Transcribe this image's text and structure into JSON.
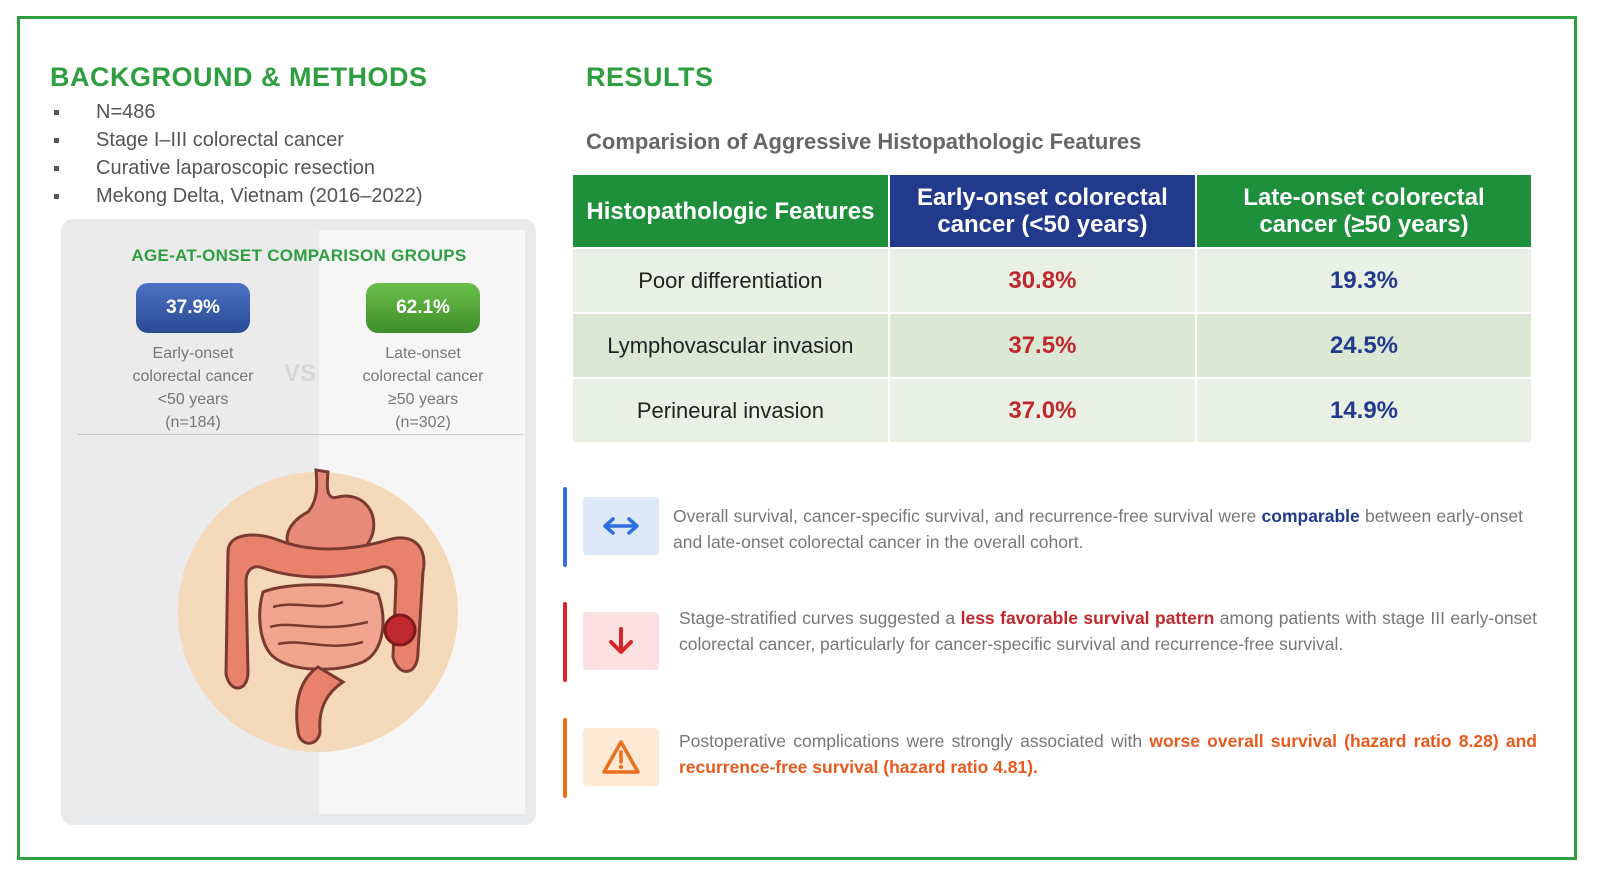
{
  "left": {
    "heading": "BACKGROUND & METHODS",
    "bullets": [
      "N=486",
      "Stage I–III colorectal cancer",
      "Curative laparoscopic resection",
      "Mekong Delta, Vietnam (2016–2022)"
    ],
    "groups_title": "AGE-AT-ONSET COMPARISON GROUPS",
    "vs": "VS",
    "early": {
      "pct": "37.9%",
      "line1": "Early-onset",
      "line2": "colorectal cancer",
      "line3": "<50 years",
      "line4": "(n=184)"
    },
    "late": {
      "pct": "62.1%",
      "line1": "Late-onset",
      "line2": "colorectal cancer",
      "line3": "≥50 years",
      "line4": "(n=302)"
    },
    "illustration": "digestive-tract-icon"
  },
  "right": {
    "heading": "RESULTS",
    "table_title": "Comparision of Aggressive Histopathologic Features",
    "columns": [
      "Histopathologic Features",
      "Early-onset colorectal cancer (<50 years)",
      "Late-onset colorectal cancer (≥50 years)"
    ],
    "rows": [
      {
        "feature": "Poor differentiation",
        "early": "30.8%",
        "late": "19.3%"
      },
      {
        "feature": "Lymphovascular invasion",
        "early": "37.5%",
        "late": "24.5%"
      },
      {
        "feature": "Perineural invasion",
        "early": "37.0%",
        "late": "14.9%"
      }
    ],
    "notes": [
      {
        "icon": "double-arrow-icon",
        "color": "#2f6fe0",
        "pre": "Overall survival, cancer-specific survival, and recurrence-free survival were ",
        "highlight": "comparable",
        "post": " between early-onset and late-onset colorectal cancer in the overall cohort."
      },
      {
        "icon": "down-arrow-icon",
        "color": "#d9252a",
        "pre": "Stage-stratified curves suggested a ",
        "highlight": "less favorable survival pattern",
        "post": " among patients with stage III early-onset colorectal cancer, particularly for cancer-specific survival and recurrence-free survival."
      },
      {
        "icon": "warning-icon",
        "color": "#e8701e",
        "pre": "Postoperative complications were strongly associated with ",
        "highlight": "worse overall survival (hazard ratio 8.28) and recurrence-free survival (hazard ratio 4.81).",
        "post": ""
      }
    ]
  }
}
